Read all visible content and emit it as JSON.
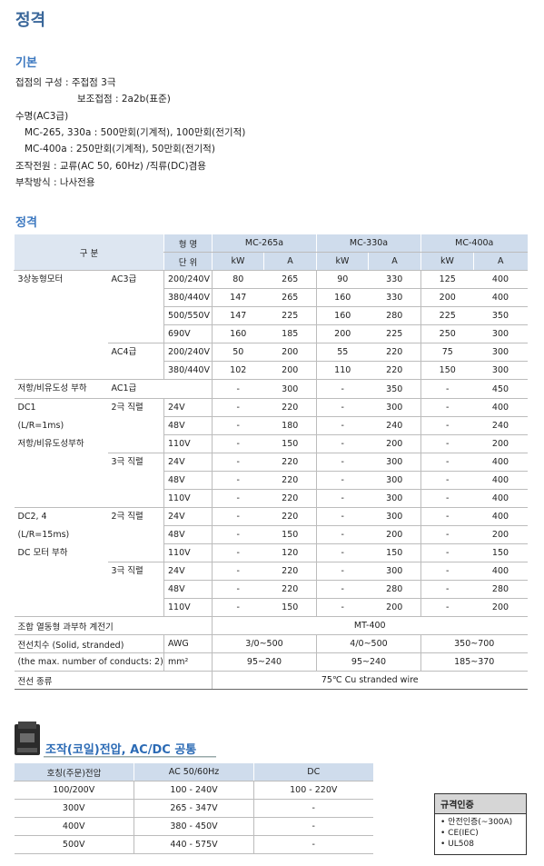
{
  "title": "정격",
  "basic": {
    "heading": "기본",
    "lines": [
      "접점의 구성 : 주접점 3극",
      "보조접점 : 2a2b(표준)",
      "수명(AC3급)",
      "MC-265, 330a : 500만회(기계적), 100만회(전기적)",
      "MC-400a : 250만회(기계적), 50만회(전기적)",
      "조작전원 : 교류(AC 50, 60Hz) /직류(DC)겸용",
      "부착방식 : 나사전용"
    ]
  },
  "rating": {
    "heading": "정격",
    "header": {
      "category": "구 분",
      "model_label": "형 명",
      "unit_label": "단 위",
      "models": [
        "MC-265a",
        "MC-330a",
        "MC-400a"
      ],
      "units": [
        "kW",
        "A",
        "kW",
        "A",
        "kW",
        "A"
      ]
    },
    "groups": [
      {
        "labels": [
          "3상농형모터"
        ],
        "subgroups": [
          {
            "label": "AC3급",
            "rows": [
              {
                "voltage": "200/240V",
                "values": [
                  80,
                  265,
                  90,
                  330,
                  125,
                  400
                ]
              },
              {
                "voltage": "380/440V",
                "values": [
                  147,
                  265,
                  160,
                  330,
                  200,
                  400
                ]
              },
              {
                "voltage": "500/550V",
                "values": [
                  147,
                  225,
                  160,
                  280,
                  225,
                  350
                ]
              },
              {
                "voltage": "690V",
                "values": [
                  160,
                  185,
                  200,
                  225,
                  250,
                  300
                ]
              }
            ]
          },
          {
            "label": "AC4급",
            "rows": [
              {
                "voltage": "200/240V",
                "values": [
                  50,
                  200,
                  55,
                  220,
                  75,
                  300
                ]
              },
              {
                "voltage": "380/440V",
                "values": [
                  102,
                  200,
                  110,
                  220,
                  150,
                  300
                ]
              }
            ]
          }
        ]
      },
      {
        "labels": [
          "저항/비유도성 부하"
        ],
        "subgroups": [
          {
            "label": "AC1급",
            "rows": [
              {
                "values": [
                  "-",
                  300,
                  "-",
                  350,
                  "-",
                  450
                ]
              }
            ]
          }
        ]
      },
      {
        "labels": [
          "DC1",
          "(L/R=1ms)",
          "저항/비유도성부하"
        ],
        "subgroups": [
          {
            "label": "2극 직렬",
            "rows": [
              {
                "voltage": "24V",
                "values": [
                  "-",
                  220,
                  "-",
                  300,
                  "-",
                  400
                ]
              },
              {
                "voltage": "48V",
                "values": [
                  "-",
                  180,
                  "-",
                  240,
                  "-",
                  240
                ]
              },
              {
                "voltage": "110V",
                "values": [
                  "-",
                  150,
                  "-",
                  200,
                  "-",
                  200
                ]
              }
            ]
          },
          {
            "label": "3극 직렬",
            "rows": [
              {
                "voltage": "24V",
                "values": [
                  "-",
                  220,
                  "-",
                  300,
                  "-",
                  400
                ]
              },
              {
                "voltage": "48V",
                "values": [
                  "-",
                  220,
                  "-",
                  300,
                  "-",
                  400
                ]
              },
              {
                "voltage": "110V",
                "values": [
                  "-",
                  220,
                  "-",
                  300,
                  "-",
                  400
                ]
              }
            ]
          }
        ]
      },
      {
        "labels": [
          "DC2, 4",
          "(L/R=15ms)",
          "DC 모터 부하"
        ],
        "subgroups": [
          {
            "label": "2극 직렬",
            "rows": [
              {
                "voltage": "24V",
                "values": [
                  "-",
                  220,
                  "-",
                  300,
                  "-",
                  400
                ]
              },
              {
                "voltage": "48V",
                "values": [
                  "-",
                  150,
                  "-",
                  200,
                  "-",
                  200
                ]
              },
              {
                "voltage": "110V",
                "values": [
                  "-",
                  120,
                  "-",
                  150,
                  "-",
                  150
                ]
              }
            ]
          },
          {
            "label": "3극 직렬",
            "rows": [
              {
                "voltage": "24V",
                "values": [
                  "-",
                  220,
                  "-",
                  300,
                  "-",
                  400
                ]
              },
              {
                "voltage": "48V",
                "values": [
                  "-",
                  220,
                  "-",
                  280,
                  "-",
                  280
                ]
              },
              {
                "voltage": "110V",
                "values": [
                  "-",
                  150,
                  "-",
                  200,
                  "-",
                  200
                ]
              }
            ]
          }
        ]
      }
    ],
    "relay": {
      "label": "조합 열동형 과부하 계전기",
      "value": "MT-400"
    },
    "wire_size": {
      "labels": [
        "전선치수 (Solid, stranded)",
        "(the max. number of conducts: 2)"
      ],
      "units": [
        "AWG",
        "mm²"
      ],
      "values": [
        [
          "3/0~500",
          "4/0~500",
          "350~700"
        ],
        [
          "95~240",
          "95~240",
          "185~370"
        ]
      ]
    },
    "wire_type": {
      "label": "전선 종류",
      "value": "75℃ Cu stranded wire"
    }
  },
  "coil": {
    "heading": "조작(코일)전압, AC/DC 공통",
    "columns": [
      "호칭(주문)전압",
      "AC 50/60Hz",
      "DC"
    ],
    "rows": [
      [
        "100/200V",
        "100 - 240V",
        "100 - 220V"
      ],
      [
        "300V",
        "265 - 347V",
        "-"
      ],
      [
        "400V",
        "380 - 450V",
        "-"
      ],
      [
        "500V",
        "440 - 575V",
        "-"
      ]
    ]
  },
  "cert": {
    "heading": "규격인증",
    "items": [
      "안전인증(~300A)",
      "CE(IEC)",
      "UL508"
    ]
  }
}
